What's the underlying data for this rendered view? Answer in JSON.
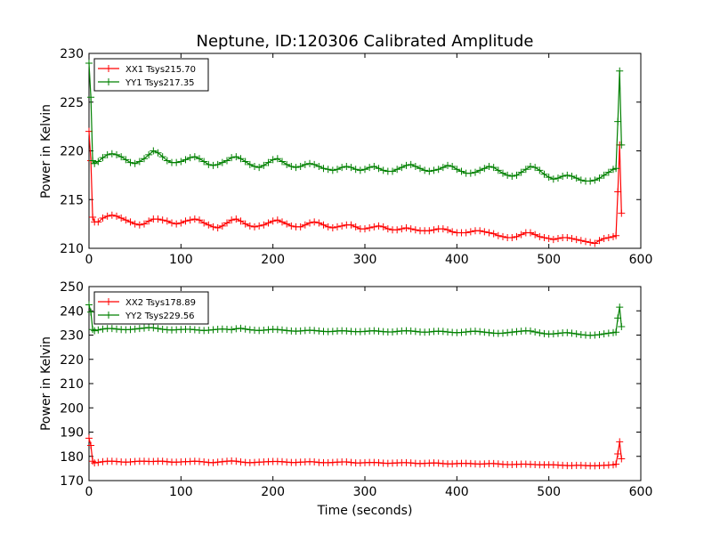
{
  "chart_data": [
    {
      "type": "line",
      "title": "Neptune, ID:120306 Calibrated Amplitude",
      "xlabel": "",
      "ylabel": "Power in Kelvin",
      "xlim": [
        0,
        600
      ],
      "ylim": [
        210,
        230
      ],
      "xticks": [
        "0",
        "100",
        "200",
        "300",
        "400",
        "500",
        "600"
      ],
      "yticks": [
        "210",
        "215",
        "220",
        "225",
        "230"
      ],
      "grid": false,
      "legend_position": "top-left",
      "series": [
        {
          "name": "XX1 Tsys215.70",
          "color": "#ff0000",
          "marker": "plus",
          "x": [
            0,
            2,
            4,
            6,
            10,
            15,
            20,
            25,
            30,
            35,
            40,
            45,
            50,
            55,
            60,
            65,
            70,
            75,
            80,
            85,
            90,
            95,
            100,
            105,
            110,
            115,
            120,
            125,
            130,
            135,
            140,
            145,
            150,
            155,
            160,
            165,
            170,
            175,
            180,
            185,
            190,
            195,
            200,
            205,
            210,
            215,
            220,
            225,
            230,
            235,
            240,
            245,
            250,
            255,
            260,
            265,
            270,
            275,
            280,
            285,
            290,
            295,
            300,
            305,
            310,
            315,
            320,
            325,
            330,
            335,
            340,
            345,
            350,
            355,
            360,
            365,
            370,
            375,
            380,
            385,
            390,
            395,
            400,
            405,
            410,
            415,
            420,
            425,
            430,
            435,
            440,
            445,
            450,
            455,
            460,
            465,
            470,
            475,
            480,
            485,
            490,
            495,
            500,
            505,
            510,
            515,
            520,
            525,
            530,
            535,
            540,
            545,
            550,
            555,
            560,
            565,
            570,
            573,
            575,
            577,
            579
          ],
          "y": [
            222.0,
            219.0,
            213.2,
            212.7,
            212.7,
            213.1,
            213.3,
            213.4,
            213.3,
            213.1,
            212.9,
            212.7,
            212.5,
            212.4,
            212.5,
            212.8,
            213.0,
            213.0,
            212.9,
            212.8,
            212.6,
            212.5,
            212.6,
            212.8,
            212.9,
            213.0,
            212.9,
            212.6,
            212.4,
            212.2,
            212.1,
            212.3,
            212.6,
            212.9,
            213.0,
            212.8,
            212.5,
            212.3,
            212.2,
            212.3,
            212.4,
            212.6,
            212.8,
            212.9,
            212.7,
            212.5,
            212.3,
            212.2,
            212.2,
            212.4,
            212.6,
            212.7,
            212.6,
            212.4,
            212.2,
            212.1,
            212.2,
            212.3,
            212.4,
            212.4,
            212.2,
            212.0,
            212.0,
            212.1,
            212.2,
            212.3,
            212.2,
            212.0,
            211.9,
            211.9,
            212.0,
            212.1,
            212.0,
            211.9,
            211.8,
            211.8,
            211.8,
            211.9,
            212.0,
            212.0,
            211.9,
            211.7,
            211.6,
            211.6,
            211.6,
            211.7,
            211.8,
            211.8,
            211.7,
            211.6,
            211.5,
            211.3,
            211.2,
            211.1,
            211.1,
            211.2,
            211.4,
            211.6,
            211.6,
            211.4,
            211.2,
            211.1,
            211.0,
            210.9,
            211.0,
            211.1,
            211.1,
            211.0,
            210.9,
            210.8,
            210.7,
            210.6,
            210.5,
            210.8,
            211.0,
            211.1,
            211.2,
            211.3,
            215.8,
            220.6,
            213.6
          ]
        },
        {
          "name": "YY1 Tsys217.35",
          "color": "#008000",
          "marker": "plus",
          "x": [
            0,
            2,
            4,
            6,
            10,
            15,
            20,
            25,
            30,
            35,
            40,
            45,
            50,
            55,
            60,
            65,
            70,
            75,
            80,
            85,
            90,
            95,
            100,
            105,
            110,
            115,
            120,
            125,
            130,
            135,
            140,
            145,
            150,
            155,
            160,
            165,
            170,
            175,
            180,
            185,
            190,
            195,
            200,
            205,
            210,
            215,
            220,
            225,
            230,
            235,
            240,
            245,
            250,
            255,
            260,
            265,
            270,
            275,
            280,
            285,
            290,
            295,
            300,
            305,
            310,
            315,
            320,
            325,
            330,
            335,
            340,
            345,
            350,
            355,
            360,
            365,
            370,
            375,
            380,
            385,
            390,
            395,
            400,
            405,
            410,
            415,
            420,
            425,
            430,
            435,
            440,
            445,
            450,
            455,
            460,
            465,
            470,
            475,
            480,
            485,
            490,
            495,
            500,
            505,
            510,
            515,
            520,
            525,
            530,
            535,
            540,
            545,
            550,
            555,
            560,
            565,
            570,
            573,
            575,
            577,
            579
          ],
          "y": [
            229.0,
            225.5,
            219.0,
            218.7,
            218.9,
            219.3,
            219.6,
            219.7,
            219.6,
            219.4,
            219.1,
            218.8,
            218.7,
            218.9,
            219.2,
            219.6,
            220.0,
            219.8,
            219.4,
            219.0,
            218.8,
            218.8,
            218.9,
            219.1,
            219.3,
            219.4,
            219.2,
            218.9,
            218.6,
            218.5,
            218.6,
            218.8,
            219.0,
            219.3,
            219.4,
            219.2,
            218.9,
            218.6,
            218.4,
            218.3,
            218.5,
            218.8,
            219.1,
            219.2,
            218.9,
            218.6,
            218.4,
            218.3,
            218.4,
            218.6,
            218.7,
            218.6,
            218.4,
            218.2,
            218.1,
            218.0,
            218.1,
            218.3,
            218.4,
            218.3,
            218.1,
            218.0,
            218.1,
            218.3,
            218.4,
            218.2,
            218.0,
            217.9,
            217.9,
            218.1,
            218.3,
            218.5,
            218.6,
            218.4,
            218.2,
            218.0,
            217.9,
            218.0,
            218.1,
            218.3,
            218.5,
            218.4,
            218.1,
            217.9,
            217.7,
            217.7,
            217.8,
            218.0,
            218.2,
            218.4,
            218.3,
            218.0,
            217.7,
            217.5,
            217.4,
            217.5,
            217.8,
            218.1,
            218.4,
            218.3,
            218.0,
            217.6,
            217.3,
            217.1,
            217.2,
            217.4,
            217.5,
            217.4,
            217.2,
            217.0,
            216.9,
            216.9,
            217.0,
            217.2,
            217.5,
            217.8,
            218.1,
            218.2,
            223.0,
            228.2,
            220.6
          ]
        }
      ]
    },
    {
      "type": "line",
      "title": "",
      "xlabel": "Time (seconds)",
      "ylabel": "Power in Kelvin",
      "xlim": [
        0,
        600
      ],
      "ylim": [
        170,
        250
      ],
      "xticks": [
        "0",
        "100",
        "200",
        "300",
        "400",
        "500",
        "600"
      ],
      "yticks": [
        "170",
        "180",
        "190",
        "200",
        "210",
        "220",
        "230",
        "240",
        "250"
      ],
      "grid": false,
      "legend_position": "top-left",
      "series": [
        {
          "name": "XX2 Tsys178.89",
          "color": "#ff0000",
          "marker": "plus",
          "x": [
            0,
            2,
            4,
            6,
            10,
            15,
            20,
            25,
            30,
            35,
            40,
            45,
            50,
            55,
            60,
            65,
            70,
            75,
            80,
            85,
            90,
            95,
            100,
            105,
            110,
            115,
            120,
            125,
            130,
            135,
            140,
            145,
            150,
            155,
            160,
            165,
            170,
            175,
            180,
            185,
            190,
            195,
            200,
            205,
            210,
            215,
            220,
            225,
            230,
            235,
            240,
            245,
            250,
            255,
            260,
            265,
            270,
            275,
            280,
            285,
            290,
            295,
            300,
            305,
            310,
            315,
            320,
            325,
            330,
            335,
            340,
            345,
            350,
            355,
            360,
            365,
            370,
            375,
            380,
            385,
            390,
            395,
            400,
            405,
            410,
            415,
            420,
            425,
            430,
            435,
            440,
            445,
            450,
            455,
            460,
            465,
            470,
            475,
            480,
            485,
            490,
            495,
            500,
            505,
            510,
            515,
            520,
            525,
            530,
            535,
            540,
            545,
            550,
            555,
            560,
            565,
            570,
            573,
            575,
            577,
            579
          ],
          "y": [
            187.5,
            184.5,
            178.0,
            177.3,
            177.5,
            177.8,
            178.0,
            178.0,
            177.9,
            177.7,
            177.6,
            177.7,
            177.9,
            178.0,
            178.0,
            177.9,
            177.9,
            178.0,
            178.0,
            177.8,
            177.6,
            177.6,
            177.7,
            177.8,
            177.9,
            178.0,
            177.9,
            177.7,
            177.5,
            177.4,
            177.6,
            177.8,
            178.0,
            178.1,
            178.0,
            177.7,
            177.5,
            177.4,
            177.5,
            177.6,
            177.7,
            177.8,
            177.9,
            177.9,
            177.8,
            177.6,
            177.5,
            177.5,
            177.6,
            177.7,
            177.8,
            177.7,
            177.5,
            177.4,
            177.4,
            177.5,
            177.6,
            177.7,
            177.7,
            177.5,
            177.3,
            177.3,
            177.4,
            177.5,
            177.5,
            177.4,
            177.2,
            177.1,
            177.2,
            177.3,
            177.4,
            177.4,
            177.3,
            177.1,
            177.0,
            177.1,
            177.2,
            177.3,
            177.2,
            177.0,
            176.9,
            176.9,
            177.0,
            177.1,
            177.1,
            177.0,
            176.9,
            176.8,
            176.9,
            177.0,
            177.0,
            176.9,
            176.7,
            176.6,
            176.6,
            176.7,
            176.8,
            176.8,
            176.7,
            176.6,
            176.5,
            176.5,
            176.5,
            176.5,
            176.4,
            176.3,
            176.2,
            176.2,
            176.3,
            176.3,
            176.2,
            176.1,
            176.1,
            176.2,
            176.3,
            176.4,
            176.5,
            176.8,
            181.0,
            186.0,
            179.0
          ]
        },
        {
          "name": "YY2 Tsys229.56",
          "color": "#008000",
          "marker": "plus",
          "x": [
            0,
            2,
            4,
            6,
            10,
            15,
            20,
            25,
            30,
            35,
            40,
            45,
            50,
            55,
            60,
            65,
            70,
            75,
            80,
            85,
            90,
            95,
            100,
            105,
            110,
            115,
            120,
            125,
            130,
            135,
            140,
            145,
            150,
            155,
            160,
            165,
            170,
            175,
            180,
            185,
            190,
            195,
            200,
            205,
            210,
            215,
            220,
            225,
            230,
            235,
            240,
            245,
            250,
            255,
            260,
            265,
            270,
            275,
            280,
            285,
            290,
            295,
            300,
            305,
            310,
            315,
            320,
            325,
            330,
            335,
            340,
            345,
            350,
            355,
            360,
            365,
            370,
            375,
            380,
            385,
            390,
            395,
            400,
            405,
            410,
            415,
            420,
            425,
            430,
            435,
            440,
            445,
            450,
            455,
            460,
            465,
            470,
            475,
            480,
            485,
            490,
            495,
            500,
            505,
            510,
            515,
            520,
            525,
            530,
            535,
            540,
            545,
            550,
            555,
            560,
            565,
            570,
            573,
            575,
            577,
            579
          ],
          "y": [
            242.5,
            239.5,
            232.3,
            231.8,
            232.1,
            232.5,
            232.7,
            232.7,
            232.5,
            232.3,
            232.2,
            232.3,
            232.5,
            232.7,
            232.9,
            233.1,
            233.0,
            232.7,
            232.4,
            232.2,
            232.1,
            232.2,
            232.3,
            232.4,
            232.4,
            232.2,
            232.0,
            231.9,
            232.0,
            232.2,
            232.4,
            232.5,
            232.4,
            232.2,
            232.6,
            232.8,
            232.5,
            232.2,
            232.0,
            231.9,
            232.0,
            232.2,
            232.4,
            232.3,
            232.1,
            231.9,
            231.7,
            231.6,
            231.7,
            231.9,
            232.0,
            231.9,
            231.7,
            231.5,
            231.4,
            231.5,
            231.7,
            231.8,
            231.7,
            231.5,
            231.4,
            231.4,
            231.5,
            231.7,
            231.8,
            231.6,
            231.4,
            231.3,
            231.3,
            231.5,
            231.7,
            231.8,
            231.7,
            231.5,
            231.3,
            231.2,
            231.3,
            231.5,
            231.6,
            231.5,
            231.3,
            231.1,
            231.0,
            231.1,
            231.3,
            231.5,
            231.6,
            231.4,
            231.2,
            231.0,
            230.8,
            230.7,
            230.8,
            231.0,
            231.2,
            231.4,
            231.6,
            231.8,
            231.7,
            231.3,
            230.9,
            230.6,
            230.4,
            230.5,
            230.7,
            230.9,
            231.0,
            230.8,
            230.5,
            230.2,
            230.0,
            229.9,
            230.0,
            230.2,
            230.5,
            230.8,
            231.0,
            231.2,
            237.0,
            241.5,
            233.5
          ]
        }
      ]
    }
  ]
}
